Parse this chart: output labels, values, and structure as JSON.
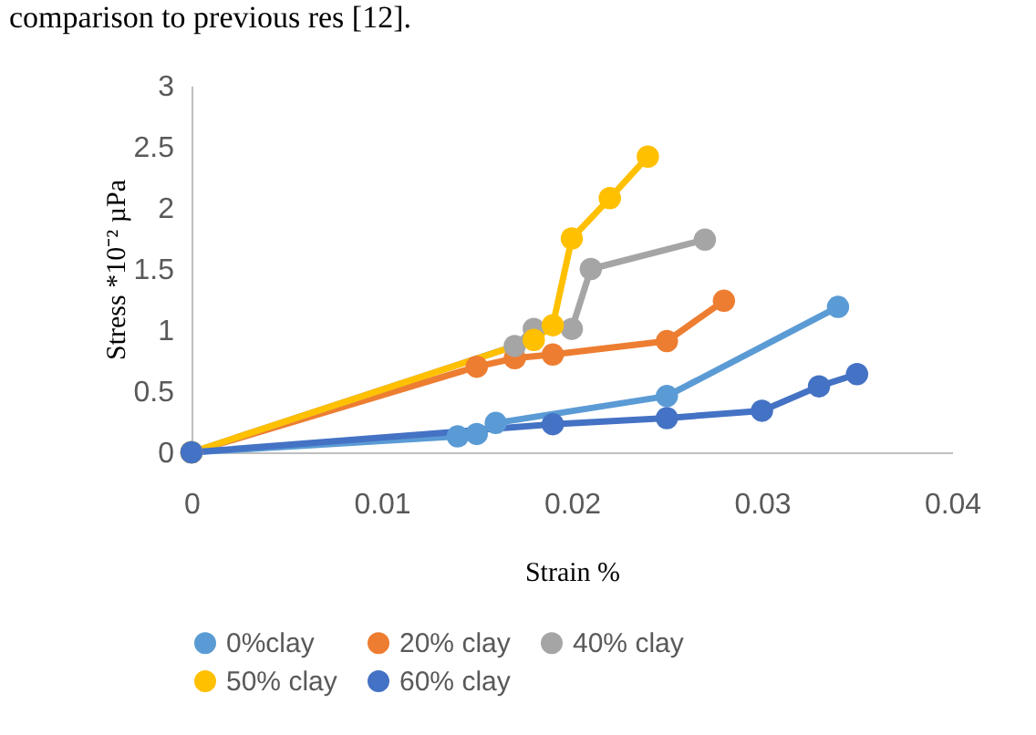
{
  "chart_data": {
    "type": "line",
    "xlabel": "Strain %",
    "ylabel": "Stress *10⁻² µPa",
    "annotations": [
      "comparison to previous res [12]."
    ],
    "xlim": [
      0,
      0.04
    ],
    "xticks": [
      0,
      0.01,
      0.02,
      0.03,
      0.04
    ],
    "ylim": [
      0,
      3
    ],
    "yticks": [
      0,
      0.5,
      1,
      1.5,
      2,
      2.5,
      3
    ],
    "grid": false,
    "legend": "bottom",
    "marker": "circle",
    "line_style": "solid",
    "series": [
      {
        "name": "0%clay",
        "color": "#5b9bd5",
        "x": [
          0,
          0.014,
          0.015,
          0.016,
          0.025,
          0.034
        ],
        "values": [
          0,
          0.13,
          0.15,
          0.24,
          0.46,
          1.19
        ]
      },
      {
        "name": "20% clay",
        "color": "#ed7d31",
        "x": [
          0,
          0.015,
          0.017,
          0.019,
          0.025,
          0.028
        ],
        "values": [
          0,
          0.7,
          0.77,
          0.8,
          0.91,
          1.24
        ]
      },
      {
        "name": "40% clay",
        "color": "#a5a5a5",
        "x": [
          0,
          0.017,
          0.018,
          0.02,
          0.021,
          0.027
        ],
        "values": [
          0,
          0.87,
          1.01,
          1.01,
          1.5,
          1.74
        ]
      },
      {
        "name": "50% clay",
        "color": "#ffc000",
        "x": [
          0,
          0.018,
          0.019,
          0.02,
          0.022,
          0.024
        ],
        "values": [
          0,
          0.92,
          1.04,
          1.75,
          2.08,
          2.42
        ]
      },
      {
        "name": "60% clay",
        "color": "#4472c4",
        "x": [
          0,
          0.019,
          0.025,
          0.03,
          0.033,
          0.035
        ],
        "values": [
          0,
          0.23,
          0.28,
          0.34,
          0.54,
          0.64
        ]
      }
    ]
  }
}
